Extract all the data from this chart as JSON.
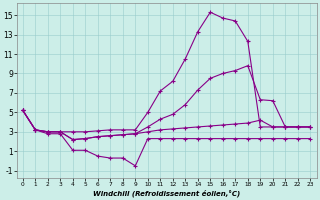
{
  "xlabel": "Windchill (Refroidissement éolien,°C)",
  "background_color": "#cceee8",
  "line_color": "#880088",
  "xlim": [
    -0.5,
    23.5
  ],
  "ylim": [
    -1.8,
    16.2
  ],
  "xticks": [
    0,
    1,
    2,
    3,
    4,
    5,
    6,
    7,
    8,
    9,
    10,
    11,
    12,
    13,
    14,
    15,
    16,
    17,
    18,
    19,
    20,
    21,
    22,
    23
  ],
  "yticks": [
    -1,
    1,
    3,
    5,
    7,
    9,
    11,
    13,
    15
  ],
  "lines": [
    {
      "x": [
        0,
        1,
        2,
        3,
        4,
        5,
        6,
        7,
        8,
        9,
        10,
        11,
        12,
        13,
        14,
        15,
        16,
        17,
        18,
        19,
        20,
        21,
        22,
        23
      ],
      "y": [
        5.2,
        3.2,
        3.0,
        3.0,
        3.0,
        3.0,
        3.1,
        3.2,
        3.2,
        3.2,
        5.0,
        7.2,
        8.2,
        10.5,
        13.3,
        15.3,
        14.7,
        14.4,
        12.3,
        3.5,
        3.5,
        3.5,
        3.5,
        3.5
      ]
    },
    {
      "x": [
        0,
        1,
        2,
        3,
        4,
        5,
        6,
        7,
        8,
        9,
        10,
        11,
        12,
        13,
        14,
        15,
        16,
        17,
        18,
        19,
        20,
        21,
        22,
        23
      ],
      "y": [
        5.2,
        3.2,
        3.0,
        3.0,
        2.2,
        2.3,
        2.5,
        2.6,
        2.7,
        2.8,
        3.5,
        4.3,
        4.8,
        5.8,
        7.3,
        8.5,
        9.0,
        9.3,
        9.8,
        6.3,
        6.2,
        3.5,
        3.5,
        3.5
      ]
    },
    {
      "x": [
        0,
        1,
        2,
        3,
        4,
        5,
        6,
        7,
        8,
        9,
        10,
        11,
        12,
        13,
        14,
        15,
        16,
        17,
        18,
        19,
        20,
        21,
        22,
        23
      ],
      "y": [
        5.2,
        3.2,
        3.0,
        3.0,
        2.2,
        2.3,
        2.5,
        2.6,
        2.7,
        2.8,
        3.0,
        3.2,
        3.3,
        3.4,
        3.5,
        3.6,
        3.7,
        3.8,
        3.9,
        4.2,
        3.5,
        3.5,
        3.5,
        3.5
      ]
    },
    {
      "x": [
        0,
        1,
        2,
        3,
        4,
        5,
        6,
        7,
        8,
        9,
        10,
        11,
        12,
        13,
        14,
        15,
        16,
        17,
        18,
        19,
        20,
        21,
        22,
        23
      ],
      "y": [
        5.2,
        3.2,
        2.8,
        2.8,
        1.1,
        1.1,
        0.5,
        0.3,
        0.3,
        -0.5,
        2.3,
        2.3,
        2.3,
        2.3,
        2.3,
        2.3,
        2.3,
        2.3,
        2.3,
        2.3,
        2.3,
        2.3,
        2.3,
        2.3
      ]
    }
  ]
}
